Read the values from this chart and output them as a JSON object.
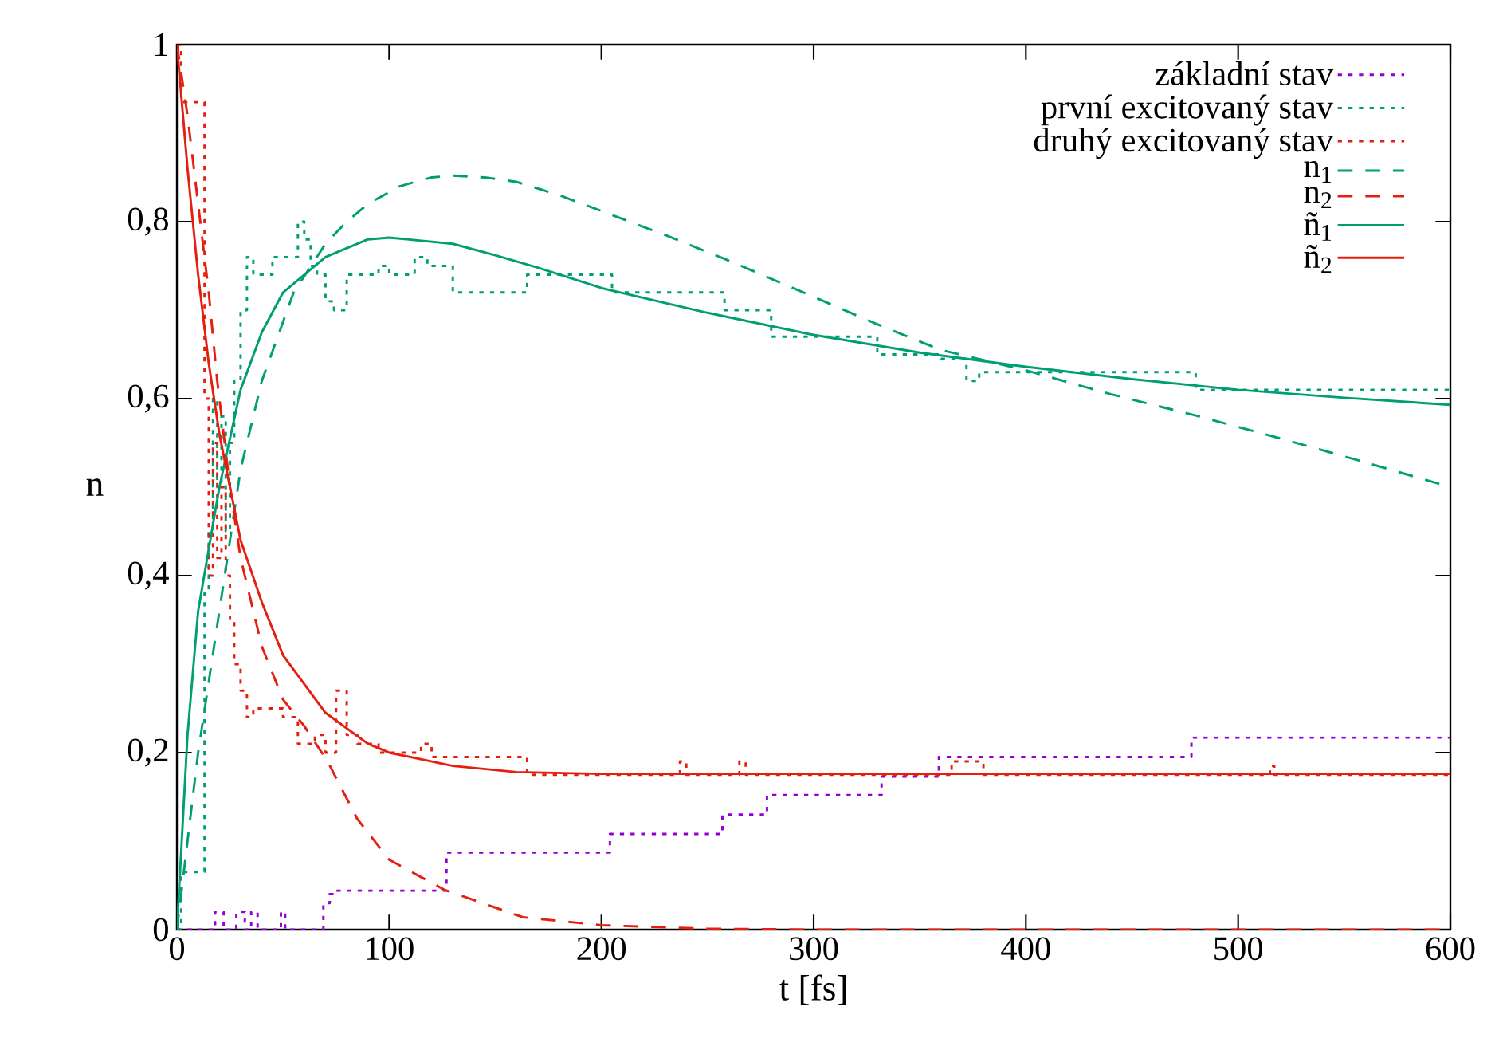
{
  "chart_data": {
    "type": "line",
    "xlabel": "t [fs]",
    "ylabel": "n",
    "xlim": [
      0,
      600
    ],
    "xticks": [
      0,
      100,
      200,
      300,
      400,
      500,
      600
    ],
    "ylim": [
      0,
      1
    ],
    "yticks": [
      0,
      {
        "value": 0.2,
        "label": "0,2"
      },
      {
        "value": 0.4,
        "label": "0,4"
      },
      {
        "value": 0.6,
        "label": "0,6"
      },
      {
        "value": 0.8,
        "label": "0,8"
      },
      1
    ],
    "legend": "top right",
    "marker": "none",
    "grid": false,
    "series": [
      {
        "name": "základní stav",
        "type": "step",
        "line_style": "dotted",
        "color": "#9400d3",
        "x": [
          0,
          18,
          22,
          28,
          32,
          35,
          38,
          49,
          51,
          69,
          72,
          74,
          127,
          204,
          257,
          278,
          332,
          359,
          478,
          600
        ],
        "values": [
          0,
          0.02,
          0,
          0.02,
          0,
          0.02,
          0,
          0.02,
          0,
          0.03,
          0.04,
          0.044,
          0.087,
          0.108,
          0.13,
          0.152,
          0.173,
          0.195,
          0.217,
          0.217
        ]
      },
      {
        "name": "první excitovaný stav",
        "type": "step",
        "line_style": "dotted",
        "color": "#009e73",
        "x": [
          0,
          2,
          13,
          15,
          17,
          19,
          21,
          23,
          25,
          27,
          30,
          33,
          36,
          45,
          48,
          57,
          60,
          63,
          66,
          70,
          74,
          80,
          85,
          95,
          100,
          112,
          118,
          130,
          165,
          205,
          258,
          280,
          330,
          360,
          372,
          378,
          480,
          600
        ],
        "values": [
          0,
          0.065,
          0.38,
          0.45,
          0.6,
          0.5,
          0.58,
          0.45,
          0.55,
          0.62,
          0.7,
          0.76,
          0.74,
          0.76,
          0.76,
          0.8,
          0.78,
          0.75,
          0.74,
          0.71,
          0.7,
          0.74,
          0.74,
          0.75,
          0.74,
          0.76,
          0.75,
          0.72,
          0.74,
          0.72,
          0.7,
          0.67,
          0.65,
          0.645,
          0.62,
          0.63,
          0.61,
          0.61
        ]
      },
      {
        "name": "druhý excitovaný stav",
        "type": "step",
        "line_style": "dotted",
        "color": "#e51e10",
        "x": [
          0,
          2,
          13,
          15,
          17,
          19,
          21,
          23,
          25,
          27,
          30,
          33,
          36,
          45,
          50,
          57,
          65,
          70,
          75,
          80,
          85,
          95,
          115,
          120,
          165,
          237,
          240,
          265,
          268,
          365,
          380,
          515,
          517,
          600
        ],
        "values": [
          1,
          0.935,
          0.6,
          0.4,
          0.55,
          0.42,
          0.5,
          0.4,
          0.35,
          0.3,
          0.27,
          0.24,
          0.25,
          0.25,
          0.24,
          0.21,
          0.22,
          0.2,
          0.27,
          0.22,
          0.21,
          0.2,
          0.21,
          0.195,
          0.175,
          0.19,
          0.175,
          0.19,
          0.175,
          0.19,
          0.175,
          0.185,
          0.175,
          0.175
        ]
      },
      {
        "name": "n$_{1}$",
        "line_style": "dashed",
        "color": "#009e73",
        "x": [
          0,
          10,
          20,
          30,
          40,
          55,
          70,
          80,
          90,
          105,
          120,
          130,
          145,
          160,
          180,
          200,
          230,
          258,
          300,
          330,
          360,
          400,
          440,
          480,
          520,
          560,
          600
        ],
        "values": [
          0,
          0.2,
          0.36,
          0.52,
          0.62,
          0.72,
          0.775,
          0.8,
          0.82,
          0.84,
          0.85,
          0.852,
          0.85,
          0.845,
          0.83,
          0.812,
          0.785,
          0.758,
          0.715,
          0.684,
          0.655,
          0.632,
          0.605,
          0.581,
          0.555,
          0.528,
          0.5
        ]
      },
      {
        "name": "n$_{2}$",
        "line_style": "dashed",
        "color": "#e51e10",
        "x": [
          0,
          5,
          10,
          15,
          19,
          25,
          30,
          40,
          50,
          60,
          71,
          85,
          100,
          126,
          163,
          200,
          250,
          300,
          600
        ],
        "values": [
          1,
          0.92,
          0.82,
          0.72,
          0.62,
          0.5,
          0.42,
          0.32,
          0.26,
          0.23,
          0.19,
          0.125,
          0.079,
          0.045,
          0.014,
          0.005,
          0.001,
          0,
          0
        ]
      },
      {
        "name": "ñ$_{1}$",
        "line_style": "solid",
        "color": "#009e73",
        "x": [
          0,
          5,
          10,
          20,
          30,
          40,
          50,
          70,
          90,
          100,
          130,
          150,
          170,
          200,
          250,
          300,
          350,
          400,
          450,
          500,
          550,
          600
        ],
        "values": [
          0,
          0.22,
          0.36,
          0.5,
          0.61,
          0.675,
          0.72,
          0.76,
          0.78,
          0.782,
          0.775,
          0.762,
          0.748,
          0.725,
          0.697,
          0.672,
          0.652,
          0.636,
          0.622,
          0.61,
          0.601,
          0.593
        ]
      },
      {
        "name": "ñ$_{2}$",
        "line_style": "solid",
        "color": "#e51e10",
        "x": [
          0,
          5,
          10,
          15,
          20,
          25,
          30,
          40,
          50,
          70,
          90,
          100,
          130,
          160,
          200,
          600
        ],
        "values": [
          1,
          0.86,
          0.74,
          0.64,
          0.56,
          0.5,
          0.44,
          0.37,
          0.31,
          0.245,
          0.21,
          0.2,
          0.185,
          0.178,
          0.176,
          0.176
        ]
      }
    ]
  }
}
